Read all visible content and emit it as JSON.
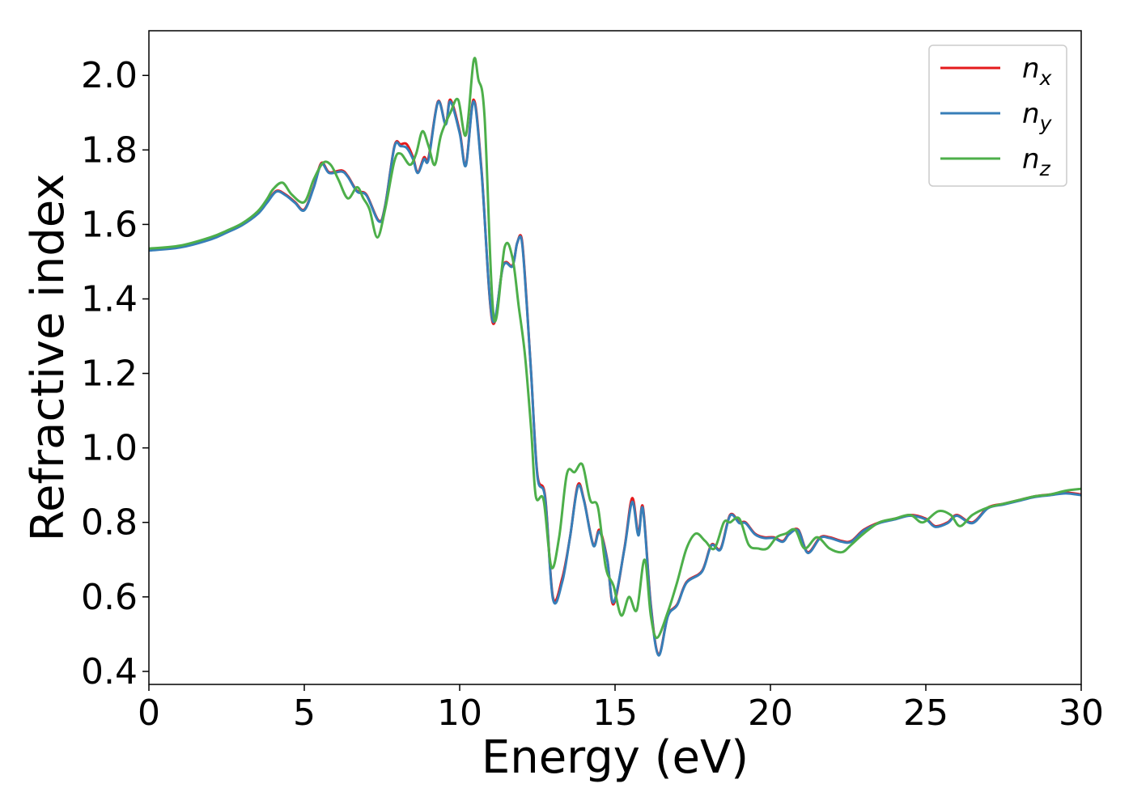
{
  "chart_data": {
    "type": "line",
    "title": "",
    "xlabel": "Energy (eV)",
    "ylabel": "Refractive index",
    "xlim": [
      0,
      30
    ],
    "ylim": [
      0.365,
      2.12
    ],
    "xticks": [
      0,
      5,
      10,
      15,
      20,
      25,
      30
    ],
    "yticks": [
      0.4,
      0.6,
      0.8,
      1.0,
      1.2,
      1.4,
      1.6,
      1.8,
      2.0
    ],
    "grid": false,
    "legend_position": "top-right",
    "series": [
      {
        "name": "n_x",
        "legend_base": "n",
        "legend_sub": "x",
        "color": "#e41a1c",
        "x": [
          0,
          1,
          2,
          2.5,
          3,
          3.5,
          3.8,
          4.1,
          4.4,
          4.7,
          5.0,
          5.3,
          5.55,
          5.8,
          6.2,
          6.4,
          6.7,
          7.0,
          7.4,
          7.6,
          7.9,
          8.1,
          8.3,
          8.5,
          8.65,
          8.85,
          9.0,
          9.3,
          9.55,
          9.7,
          10.0,
          10.2,
          10.45,
          10.7,
          11.05,
          11.4,
          11.7,
          11.85,
          12.0,
          12.15,
          12.3,
          12.5,
          12.75,
          13.0,
          13.3,
          13.55,
          13.8,
          14.0,
          14.3,
          14.5,
          14.75,
          14.95,
          15.3,
          15.55,
          15.75,
          15.9,
          16.15,
          16.4,
          16.7,
          17.0,
          17.3,
          17.8,
          18.1,
          18.4,
          18.7,
          19.0,
          19.2,
          19.5,
          19.8,
          20.1,
          20.4,
          20.6,
          20.9,
          21.2,
          21.6,
          21.9,
          22.3,
          22.6,
          23.0,
          23.5,
          24.0,
          24.5,
          25.0,
          25.3,
          25.7,
          26.0,
          26.5,
          27.0,
          27.5,
          28.0,
          28.5,
          29.0,
          29.5,
          30.0
        ],
        "y": [
          1.532,
          1.54,
          1.563,
          1.58,
          1.6,
          1.63,
          1.66,
          1.69,
          1.68,
          1.66,
          1.64,
          1.7,
          1.765,
          1.74,
          1.745,
          1.73,
          1.69,
          1.68,
          1.61,
          1.65,
          1.81,
          1.815,
          1.815,
          1.78,
          1.74,
          1.78,
          1.78,
          1.93,
          1.87,
          1.935,
          1.85,
          1.76,
          1.935,
          1.75,
          1.34,
          1.49,
          1.49,
          1.55,
          1.56,
          1.4,
          1.2,
          0.93,
          0.87,
          0.6,
          0.65,
          0.76,
          0.9,
          0.86,
          0.74,
          0.78,
          0.7,
          0.58,
          0.73,
          0.865,
          0.77,
          0.84,
          0.58,
          0.445,
          0.55,
          0.58,
          0.64,
          0.67,
          0.74,
          0.73,
          0.82,
          0.8,
          0.8,
          0.77,
          0.76,
          0.76,
          0.75,
          0.77,
          0.78,
          0.72,
          0.76,
          0.76,
          0.75,
          0.75,
          0.78,
          0.8,
          0.81,
          0.82,
          0.81,
          0.79,
          0.8,
          0.82,
          0.8,
          0.84,
          0.85,
          0.86,
          0.87,
          0.875,
          0.88,
          0.875
        ]
      },
      {
        "name": "n_y",
        "legend_base": "n",
        "legend_sub": "y",
        "color": "#377eb8",
        "x": [
          0,
          1,
          2,
          2.5,
          3,
          3.5,
          3.8,
          4.1,
          4.4,
          4.7,
          5.0,
          5.3,
          5.55,
          5.8,
          6.2,
          6.4,
          6.7,
          7.0,
          7.4,
          7.6,
          7.9,
          8.1,
          8.3,
          8.5,
          8.65,
          8.85,
          9.0,
          9.3,
          9.55,
          9.7,
          10.0,
          10.2,
          10.45,
          10.7,
          11.05,
          11.4,
          11.7,
          11.85,
          12.0,
          12.15,
          12.3,
          12.5,
          12.75,
          13.0,
          13.3,
          13.55,
          13.8,
          14.0,
          14.3,
          14.5,
          14.75,
          14.95,
          15.3,
          15.55,
          15.75,
          15.9,
          16.15,
          16.4,
          16.7,
          17.0,
          17.3,
          17.8,
          18.1,
          18.4,
          18.7,
          19.0,
          19.2,
          19.5,
          19.8,
          20.1,
          20.4,
          20.6,
          20.9,
          21.2,
          21.6,
          21.9,
          22.3,
          22.6,
          23.0,
          23.5,
          24.0,
          24.5,
          25.0,
          25.3,
          25.7,
          26.0,
          26.5,
          27.0,
          27.5,
          28.0,
          28.5,
          29.0,
          29.5,
          30.0
        ],
        "y": [
          1.53,
          1.538,
          1.56,
          1.578,
          1.598,
          1.628,
          1.658,
          1.688,
          1.678,
          1.658,
          1.638,
          1.698,
          1.762,
          1.738,
          1.742,
          1.728,
          1.688,
          1.678,
          1.608,
          1.648,
          1.808,
          1.81,
          1.805,
          1.775,
          1.738,
          1.775,
          1.775,
          1.928,
          1.868,
          1.93,
          1.845,
          1.758,
          1.93,
          1.745,
          1.345,
          1.488,
          1.488,
          1.55,
          1.555,
          1.395,
          1.2,
          0.925,
          0.865,
          0.595,
          0.64,
          0.76,
          0.895,
          0.858,
          0.738,
          0.775,
          0.698,
          0.585,
          0.728,
          0.855,
          0.765,
          0.835,
          0.575,
          0.443,
          0.548,
          0.578,
          0.638,
          0.668,
          0.738,
          0.728,
          0.818,
          0.798,
          0.798,
          0.768,
          0.758,
          0.758,
          0.748,
          0.768,
          0.778,
          0.718,
          0.758,
          0.758,
          0.748,
          0.748,
          0.778,
          0.798,
          0.808,
          0.818,
          0.808,
          0.788,
          0.798,
          0.818,
          0.798,
          0.838,
          0.848,
          0.858,
          0.868,
          0.873,
          0.878,
          0.873
        ]
      },
      {
        "name": "n_z",
        "legend_base": "n",
        "legend_sub": "z",
        "color": "#4daf4a",
        "x": [
          0,
          1,
          2,
          2.5,
          3,
          3.5,
          3.8,
          4.0,
          4.3,
          4.6,
          5.0,
          5.3,
          5.6,
          5.85,
          6.1,
          6.4,
          6.7,
          6.9,
          7.1,
          7.35,
          7.6,
          7.9,
          8.1,
          8.4,
          8.6,
          8.8,
          9.0,
          9.2,
          9.4,
          9.7,
          9.95,
          10.2,
          10.45,
          10.6,
          10.8,
          11.1,
          11.45,
          11.7,
          11.9,
          12.1,
          12.3,
          12.45,
          12.7,
          12.95,
          13.2,
          13.45,
          13.7,
          13.95,
          14.2,
          14.45,
          14.7,
          14.95,
          15.2,
          15.45,
          15.7,
          15.95,
          16.15,
          16.35,
          16.7,
          17.0,
          17.3,
          17.6,
          17.9,
          18.2,
          18.5,
          18.7,
          19.0,
          19.3,
          19.6,
          19.9,
          20.2,
          20.5,
          20.8,
          21.1,
          21.5,
          21.9,
          22.3,
          22.6,
          23.0,
          23.5,
          24.0,
          24.5,
          24.9,
          25.4,
          25.8,
          26.1,
          26.5,
          27.0,
          27.5,
          28.0,
          28.5,
          29.0,
          29.5,
          30.0
        ],
        "y": [
          1.535,
          1.543,
          1.566,
          1.583,
          1.603,
          1.635,
          1.668,
          1.695,
          1.712,
          1.68,
          1.66,
          1.72,
          1.765,
          1.76,
          1.72,
          1.67,
          1.7,
          1.67,
          1.64,
          1.565,
          1.64,
          1.77,
          1.79,
          1.76,
          1.79,
          1.85,
          1.81,
          1.76,
          1.84,
          1.9,
          1.935,
          1.84,
          2.04,
          1.99,
          1.89,
          1.35,
          1.54,
          1.51,
          1.38,
          1.25,
          1.05,
          0.87,
          0.86,
          0.68,
          0.76,
          0.93,
          0.935,
          0.955,
          0.86,
          0.84,
          0.68,
          0.63,
          0.55,
          0.6,
          0.565,
          0.7,
          0.55,
          0.49,
          0.56,
          0.64,
          0.73,
          0.77,
          0.75,
          0.73,
          0.8,
          0.8,
          0.81,
          0.74,
          0.73,
          0.73,
          0.76,
          0.77,
          0.78,
          0.73,
          0.76,
          0.73,
          0.72,
          0.74,
          0.77,
          0.8,
          0.81,
          0.82,
          0.8,
          0.83,
          0.82,
          0.79,
          0.82,
          0.84,
          0.85,
          0.86,
          0.87,
          0.875,
          0.885,
          0.89
        ]
      }
    ]
  }
}
